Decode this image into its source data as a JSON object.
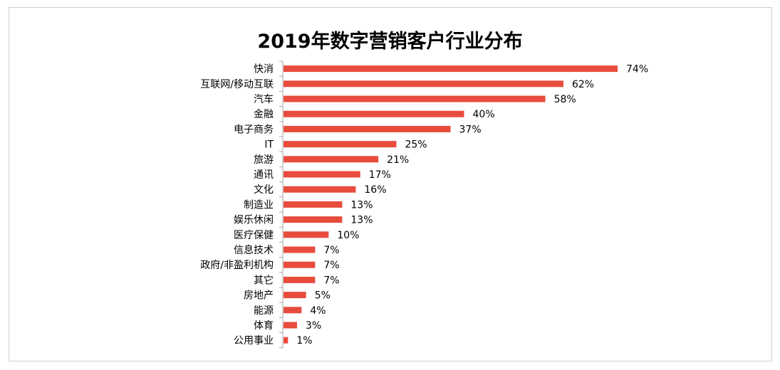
{
  "chart_data": {
    "type": "bar",
    "orientation": "horizontal",
    "title": "2019年数字营销客户行业分布",
    "categories": [
      "快消",
      "互联网/移动互联",
      "汽车",
      "金融",
      "电子商务",
      "IT",
      "旅游",
      "通讯",
      "文化",
      "制造业",
      "娱乐休闲",
      "医疗保健",
      "信息技术",
      "政府/非盈利机构",
      "其它",
      "房地产",
      "能源",
      "体育",
      "公用事业"
    ],
    "values": [
      74,
      62,
      58,
      40,
      37,
      25,
      21,
      17,
      16,
      13,
      13,
      10,
      7,
      7,
      7,
      5,
      4,
      3,
      1
    ],
    "value_labels": [
      "74%",
      "62%",
      "58%",
      "40%",
      "37%",
      "25%",
      "21%",
      "17%",
      "16%",
      "13%",
      "13%",
      "10%",
      "7%",
      "7%",
      "7%",
      "5%",
      "4%",
      "3%",
      "1%"
    ],
    "unit": "%",
    "xlim": [
      0,
      100
    ],
    "grid": false,
    "legend": "none",
    "bar_color": "#e84c3d",
    "axis_color": "#a6a6a6"
  }
}
